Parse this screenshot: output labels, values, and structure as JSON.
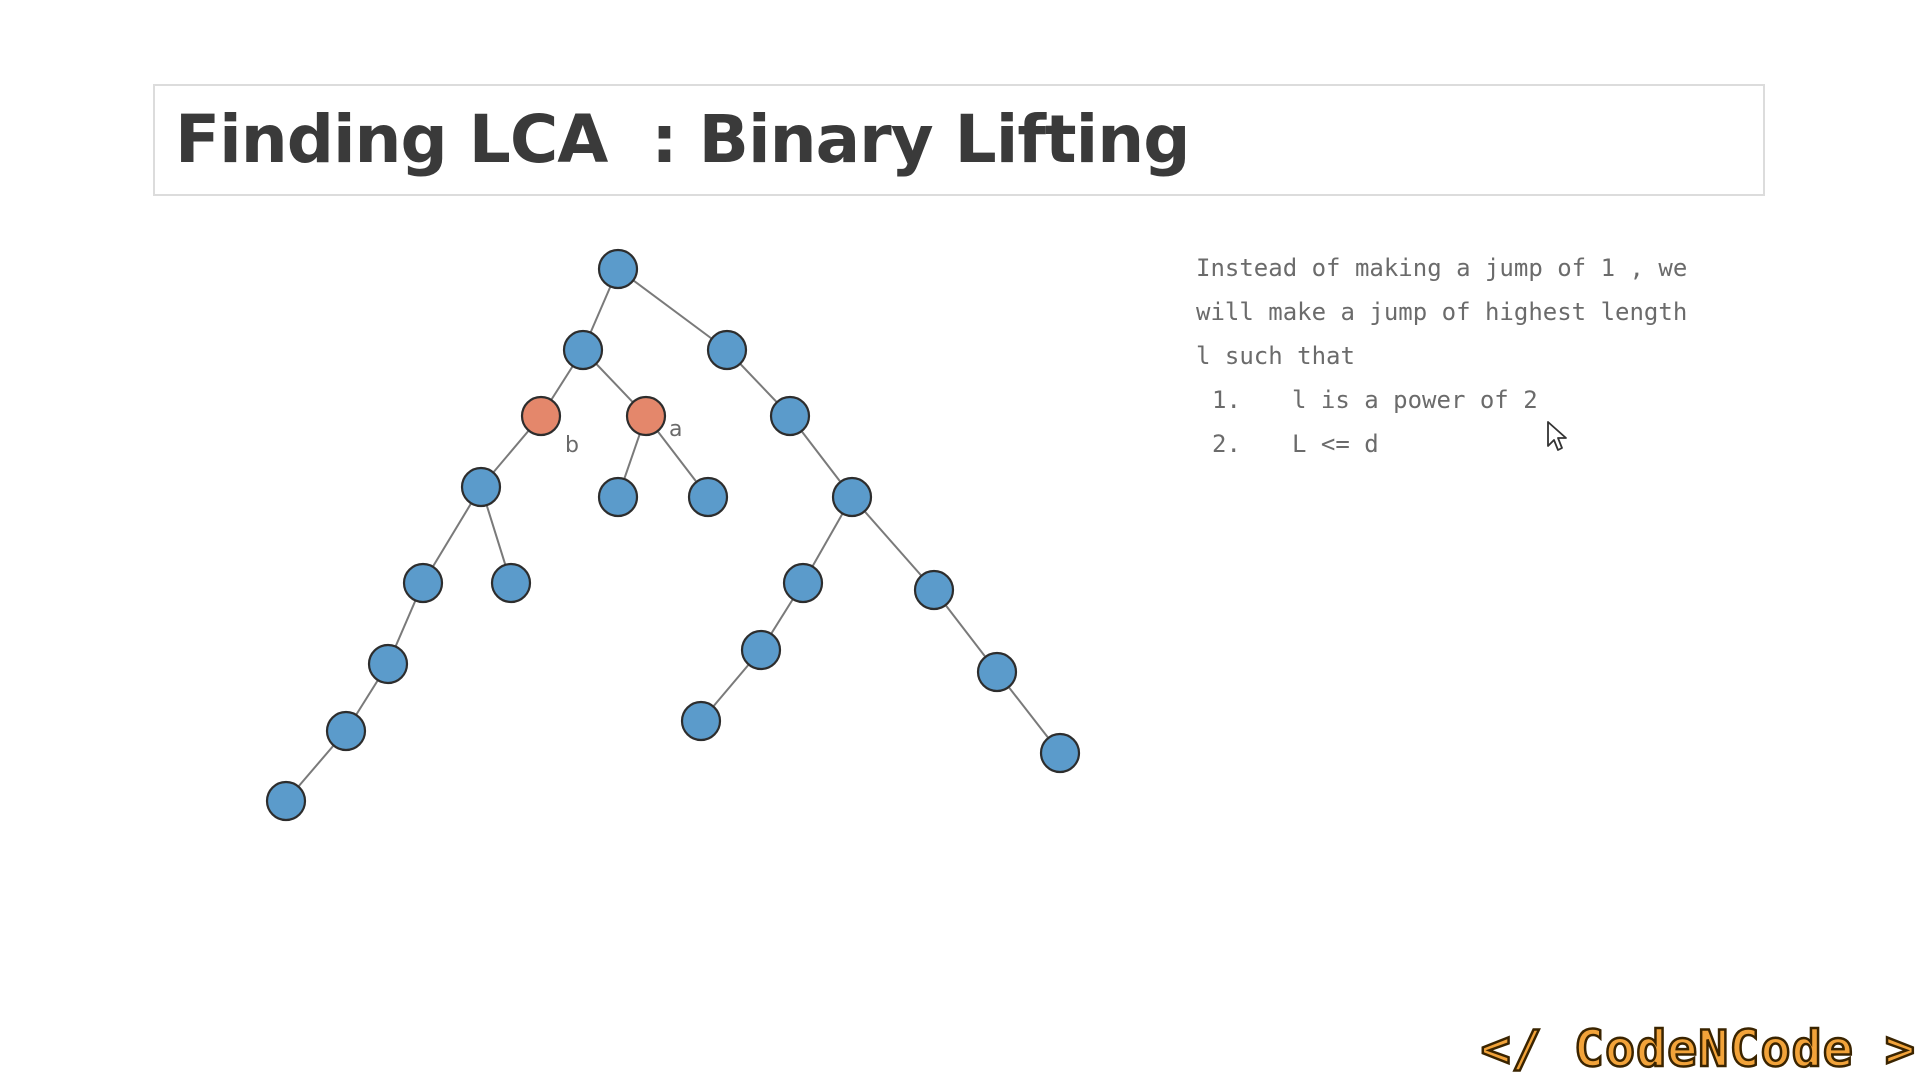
{
  "slide": {
    "title": "Finding LCA  : Binary Lifting"
  },
  "tree": {
    "colors": {
      "node": "#5b9bcb",
      "highlight": "#e4876b",
      "edge": "#7a7a7a"
    },
    "labels": {
      "b": "b",
      "a": "a"
    }
  },
  "explanation": {
    "lines": [
      "Instead of making a jump of 1 , we",
      "will make a jump of highest length",
      "l such that"
    ],
    "conditions": [
      {
        "num": "1.",
        "text": "l is a power of 2"
      },
      {
        "num": "2.",
        "text": "L <= d"
      }
    ]
  },
  "brand": {
    "text": "</ CodeNCode >",
    "color": "#f2a33a"
  }
}
